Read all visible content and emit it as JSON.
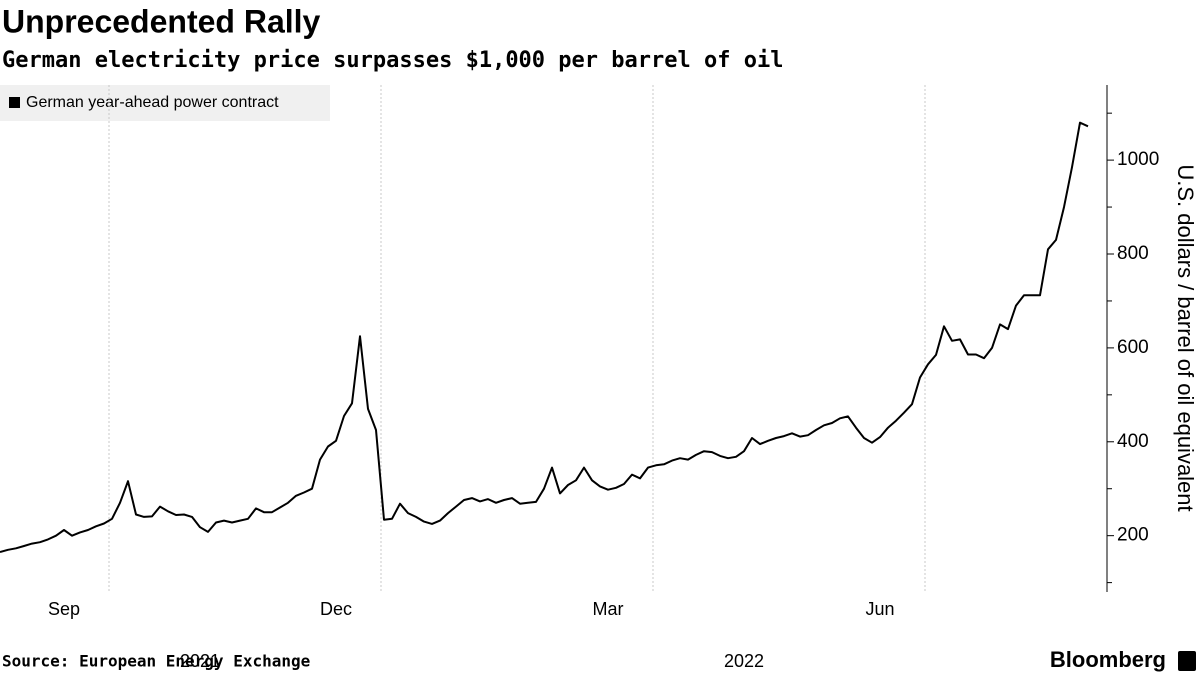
{
  "chart_data": {
    "type": "line",
    "title": "Unprecedented Rally",
    "subtitle": "German electricity price surpasses $1,000 per barrel of oil",
    "y_label": "U.S. dollars / barrel of oil equivalent",
    "source": "Source: European Energy Exchange",
    "brand": "Bloomberg",
    "x_groups": [
      "2021",
      "2022"
    ],
    "categories": [
      null,
      null,
      null,
      null,
      null,
      null,
      null,
      null,
      "Sep",
      null,
      null,
      null,
      null,
      null,
      null,
      null,
      null,
      null,
      null,
      null,
      null,
      null,
      null,
      null,
      null,
      null,
      null,
      null,
      null,
      null,
      null,
      null,
      null,
      null,
      null,
      null,
      null,
      null,
      null,
      null,
      null,
      null,
      "Dec",
      null,
      null,
      null,
      null,
      null,
      null,
      null,
      null,
      null,
      null,
      null,
      null,
      null,
      null,
      null,
      null,
      null,
      null,
      null,
      null,
      null,
      null,
      null,
      null,
      null,
      null,
      null,
      null,
      null,
      null,
      null,
      null,
      null,
      "Mar",
      null,
      null,
      null,
      null,
      null,
      null,
      null,
      null,
      null,
      null,
      null,
      null,
      null,
      null,
      null,
      null,
      null,
      null,
      null,
      null,
      null,
      null,
      null,
      null,
      null,
      null,
      null,
      null,
      null,
      null,
      null,
      null,
      null,
      "Jun",
      null,
      null,
      null,
      null,
      null,
      null,
      null,
      null,
      null,
      null,
      null,
      null,
      null,
      null,
      null,
      null,
      null,
      null,
      null,
      null,
      null,
      null,
      null,
      null,
      null,
      null
    ],
    "series": [
      {
        "name": "German year-ahead power contract",
        "color": "#000000",
        "values": [
          165,
          170,
          173,
          178,
          183,
          186,
          192,
          200,
          212,
          200,
          207,
          212,
          220,
          226,
          236,
          270,
          316,
          245,
          240,
          241,
          262,
          252,
          244,
          245,
          240,
          218,
          208,
          228,
          232,
          228,
          232,
          236,
          258,
          250,
          250,
          260,
          270,
          285,
          292,
          300,
          362,
          390,
          402,
          455,
          482,
          625,
          470,
          425,
          234,
          236,
          268,
          248,
          240,
          230,
          225,
          232,
          248,
          262,
          276,
          280,
          273,
          278,
          270,
          276,
          280,
          268,
          270,
          272,
          300,
          345,
          290,
          308,
          318,
          345,
          318,
          305,
          298,
          302,
          310,
          330,
          322,
          345,
          350,
          352,
          360,
          365,
          362,
          372,
          380,
          378,
          370,
          365,
          368,
          380,
          408,
          395,
          402,
          408,
          412,
          418,
          411,
          414,
          425,
          435,
          440,
          450,
          454,
          430,
          408,
          398,
          410,
          430,
          445,
          462,
          480,
          537,
          565,
          585,
          646,
          615,
          618,
          586,
          586,
          578,
          600,
          650,
          640,
          690,
          712,
          712,
          712,
          810,
          830,
          900,
          985,
          1080,
          1072
        ]
      }
    ],
    "ylim": [
      80,
      1160
    ],
    "yticks": [
      200,
      400,
      600,
      800,
      1000
    ],
    "yminor_ticks": [
      100,
      300,
      500,
      700,
      900,
      1100
    ],
    "grid": "x"
  }
}
